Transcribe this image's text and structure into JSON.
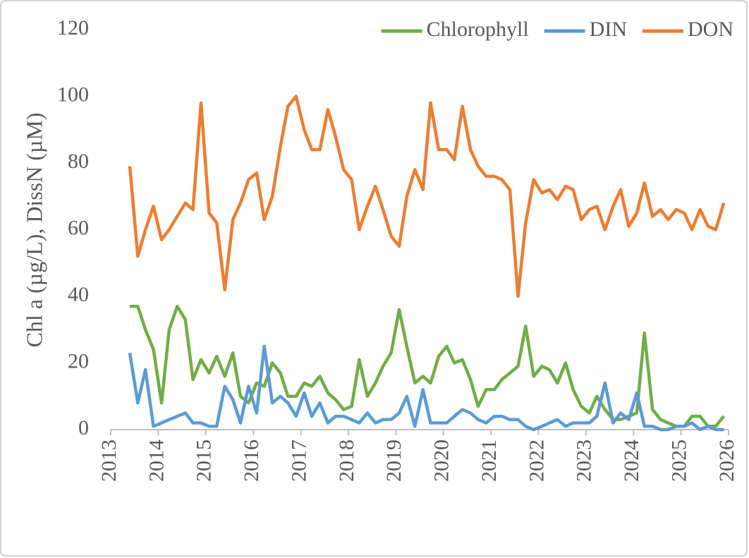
{
  "chart_data": {
    "type": "line",
    "y_label": "Chl a (µg/L), DissN (µM)",
    "x": [
      2013.4,
      2013.57,
      2013.73,
      2013.9,
      2014.07,
      2014.23,
      2014.4,
      2014.57,
      2014.73,
      2014.9,
      2015.07,
      2015.23,
      2015.4,
      2015.57,
      2015.73,
      2015.9,
      2016.07,
      2016.23,
      2016.4,
      2016.57,
      2016.73,
      2016.9,
      2017.07,
      2017.23,
      2017.4,
      2017.57,
      2017.73,
      2017.9,
      2018.07,
      2018.23,
      2018.4,
      2018.57,
      2018.73,
      2018.9,
      2019.07,
      2019.23,
      2019.4,
      2019.57,
      2019.73,
      2019.9,
      2020.07,
      2020.23,
      2020.4,
      2020.57,
      2020.73,
      2020.9,
      2021.07,
      2021.23,
      2021.4,
      2021.57,
      2021.73,
      2021.9,
      2022.07,
      2022.23,
      2022.4,
      2022.57,
      2022.73,
      2022.9,
      2023.07,
      2023.23,
      2023.4,
      2023.57,
      2023.73,
      2023.9,
      2024.07,
      2024.23,
      2024.4,
      2024.57,
      2024.73,
      2024.9,
      2025.07,
      2025.23,
      2025.4,
      2025.57,
      2025.73,
      2025.9
    ],
    "series": [
      {
        "name": "Chlorophyll",
        "color": "#70ad47",
        "values": [
          37,
          37,
          30,
          24,
          8,
          30,
          37,
          33,
          15,
          21,
          17,
          22,
          16,
          23,
          10,
          8,
          14,
          13,
          20,
          17,
          10,
          10,
          14,
          13,
          16,
          11,
          9,
          6,
          7,
          21,
          10,
          14,
          19,
          23,
          36,
          25,
          14,
          16,
          14,
          22,
          25,
          20,
          21,
          15,
          7,
          12,
          12,
          15,
          17,
          19,
          31,
          16,
          19,
          18,
          14,
          20,
          12,
          7,
          5,
          10,
          6,
          3,
          3,
          4,
          5,
          29,
          6,
          3,
          2,
          1,
          1,
          4,
          4,
          1,
          1,
          4
        ]
      },
      {
        "name": "DIN",
        "color": "#5b9bd5",
        "values": [
          23,
          8,
          18,
          1,
          2,
          3,
          4,
          5,
          2,
          2,
          1,
          1,
          13,
          9,
          2,
          13,
          5,
          25,
          8,
          10,
          8,
          4,
          11,
          4,
          8,
          2,
          4,
          4,
          3,
          2,
          5,
          2,
          3,
          3,
          5,
          10,
          1,
          12,
          2,
          2,
          2,
          4,
          6,
          5,
          3,
          2,
          4,
          4,
          3,
          3,
          1,
          0,
          1,
          2,
          3,
          1,
          2,
          2,
          2,
          4,
          14,
          2,
          5,
          3,
          11,
          1,
          1,
          0,
          0,
          1,
          1,
          2,
          0,
          1,
          0,
          0
        ]
      },
      {
        "name": "DON",
        "color": "#ed7d31",
        "values": [
          79,
          52,
          60,
          67,
          57,
          60,
          64,
          68,
          66,
          98,
          65,
          62,
          42,
          63,
          68,
          75,
          77,
          63,
          70,
          85,
          97,
          100,
          90,
          84,
          84,
          96,
          88,
          78,
          75,
          60,
          67,
          73,
          66,
          58,
          55,
          70,
          78,
          72,
          98,
          84,
          84,
          81,
          97,
          84,
          79,
          76,
          76,
          75,
          72,
          40,
          62,
          75,
          71,
          72,
          69,
          73,
          72,
          63,
          66,
          67,
          60,
          67,
          72,
          61,
          65,
          74,
          64,
          66,
          63,
          66,
          65,
          60,
          66,
          61,
          60,
          68
        ]
      }
    ],
    "xlim": [
      2013,
      2026
    ],
    "xticks": [
      2013,
      2014,
      2015,
      2016,
      2017,
      2018,
      2019,
      2020,
      2021,
      2022,
      2023,
      2024,
      2025,
      2026
    ],
    "ylim": [
      0,
      120
    ],
    "yticks": [
      0,
      20,
      40,
      60,
      80,
      100,
      120
    ],
    "legend": "top-right"
  }
}
